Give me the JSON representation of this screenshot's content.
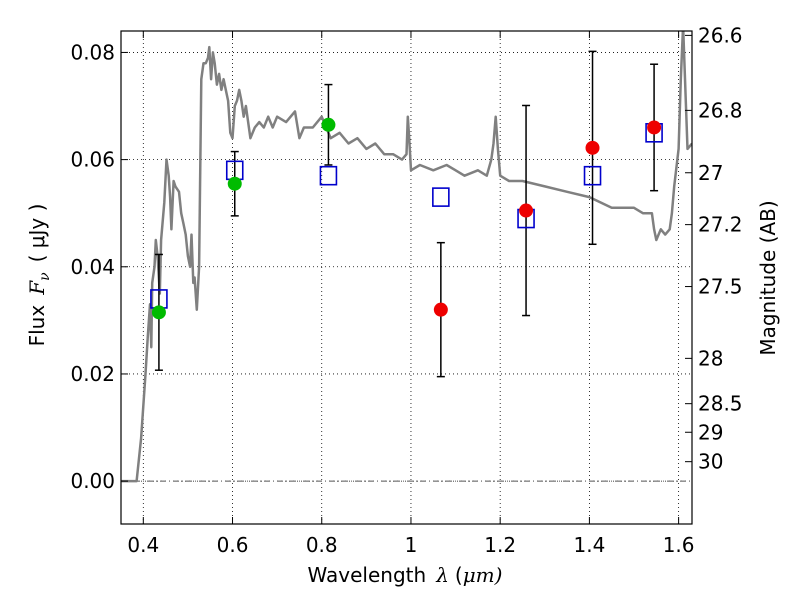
{
  "chart_data": {
    "type": "scatter",
    "xlabel": "Wavelength",
    "xlabel_symbol": "λ",
    "xlabel_unit_open": "(",
    "xlabel_unit": "μm)",
    "ylabel": "Flux",
    "ylabel_symbol": "F",
    "ylabel_subscript": "ν",
    "ylabel_unit": "( μJy )",
    "y2label": "Magnitude (AB)",
    "xlim": [
      0.35,
      1.63
    ],
    "ylim": [
      -0.008,
      0.084
    ],
    "grid": true,
    "x_ticks": [
      {
        "value": 0.4,
        "label": "0.4"
      },
      {
        "value": 0.6,
        "label": "0.6"
      },
      {
        "value": 0.8,
        "label": "0.8"
      },
      {
        "value": 1.0,
        "label": "1"
      },
      {
        "value": 1.2,
        "label": "1.2"
      },
      {
        "value": 1.4,
        "label": "1.4"
      },
      {
        "value": 1.6,
        "label": "1.6"
      }
    ],
    "y_ticks": [
      {
        "value": 0.0,
        "label": "0.00"
      },
      {
        "value": 0.02,
        "label": "0.02"
      },
      {
        "value": 0.04,
        "label": "0.04"
      },
      {
        "value": 0.06,
        "label": "0.06"
      },
      {
        "value": 0.08,
        "label": "0.08"
      }
    ],
    "y2_ticks": [
      {
        "value": 26.6,
        "label": "26.6"
      },
      {
        "value": 26.8,
        "label": "26.8"
      },
      {
        "value": 27.0,
        "label": "27"
      },
      {
        "value": 27.2,
        "label": "27.2"
      },
      {
        "value": 27.5,
        "label": "27.5"
      },
      {
        "value": 28.0,
        "label": "28"
      },
      {
        "value": 28.5,
        "label": "28.5"
      },
      {
        "value": 29.0,
        "label": "29"
      },
      {
        "value": 30.0,
        "label": "30"
      }
    ],
    "series": [
      {
        "name": "model spectrum",
        "kind": "line",
        "color": "#808080",
        "x": [
          0.35,
          0.375,
          0.385,
          0.395,
          0.405,
          0.41,
          0.415,
          0.418,
          0.42,
          0.425,
          0.428,
          0.432,
          0.437,
          0.44,
          0.447,
          0.452,
          0.457,
          0.46,
          0.463,
          0.468,
          0.472,
          0.48,
          0.485,
          0.49,
          0.495,
          0.5,
          0.505,
          0.508,
          0.512,
          0.515,
          0.52,
          0.525,
          0.53,
          0.535,
          0.54,
          0.545,
          0.548,
          0.552,
          0.556,
          0.56,
          0.565,
          0.57,
          0.575,
          0.58,
          0.585,
          0.59,
          0.595,
          0.6,
          0.605,
          0.61,
          0.615,
          0.62,
          0.625,
          0.63,
          0.64,
          0.65,
          0.66,
          0.67,
          0.68,
          0.69,
          0.7,
          0.72,
          0.74,
          0.75,
          0.76,
          0.78,
          0.8,
          0.82,
          0.84,
          0.86,
          0.88,
          0.9,
          0.92,
          0.94,
          0.96,
          0.98,
          0.99,
          0.993,
          0.996,
          1.0,
          1.02,
          1.05,
          1.08,
          1.1,
          1.12,
          1.15,
          1.17,
          1.18,
          1.185,
          1.19,
          1.195,
          1.2,
          1.22,
          1.25,
          1.3,
          1.35,
          1.4,
          1.45,
          1.47,
          1.5,
          1.52,
          1.54,
          1.545,
          1.55,
          1.56,
          1.57,
          1.58,
          1.585,
          1.59,
          1.6,
          1.605,
          1.61,
          1.62,
          1.63
        ],
        "y": [
          0.0,
          0.0,
          0.0,
          0.008,
          0.02,
          0.027,
          0.033,
          0.025,
          0.037,
          0.04,
          0.045,
          0.042,
          0.035,
          0.045,
          0.052,
          0.06,
          0.057,
          0.053,
          0.047,
          0.056,
          0.055,
          0.054,
          0.05,
          0.048,
          0.046,
          0.042,
          0.04,
          0.046,
          0.037,
          0.038,
          0.032,
          0.04,
          0.075,
          0.078,
          0.078,
          0.079,
          0.081,
          0.075,
          0.08,
          0.078,
          0.074,
          0.076,
          0.073,
          0.075,
          0.073,
          0.071,
          0.065,
          0.064,
          0.07,
          0.071,
          0.073,
          0.071,
          0.068,
          0.07,
          0.064,
          0.066,
          0.067,
          0.066,
          0.068,
          0.066,
          0.068,
          0.067,
          0.069,
          0.064,
          0.066,
          0.066,
          0.068,
          0.064,
          0.065,
          0.063,
          0.064,
          0.062,
          0.063,
          0.061,
          0.061,
          0.06,
          0.061,
          0.068,
          0.064,
          0.058,
          0.059,
          0.058,
          0.059,
          0.058,
          0.057,
          0.058,
          0.057,
          0.06,
          0.063,
          0.068,
          0.062,
          0.057,
          0.056,
          0.056,
          0.055,
          0.054,
          0.053,
          0.051,
          0.051,
          0.051,
          0.05,
          0.05,
          0.047,
          0.045,
          0.047,
          0.046,
          0.047,
          0.05,
          0.055,
          0.062,
          0.075,
          0.085,
          0.062,
          0.063
        ]
      },
      {
        "name": "model photometry",
        "kind": "open-square",
        "color": "#0000cc",
        "x": [
          0.435,
          0.605,
          0.815,
          1.067,
          1.258,
          1.407,
          1.545
        ],
        "y": [
          0.034,
          0.058,
          0.057,
          0.053,
          0.049,
          0.057,
          0.065
        ]
      },
      {
        "name": "optical detections",
        "kind": "filled-circle",
        "color": "#00bb00",
        "x": [
          0.435,
          0.605,
          0.815
        ],
        "y": [
          0.0315,
          0.0555,
          0.0665
        ],
        "err": [
          0.0108,
          0.006,
          0.0075
        ]
      },
      {
        "name": "NIR detections",
        "kind": "filled-circle",
        "color": "#ee0000",
        "x": [
          1.067,
          1.258,
          1.407,
          1.545
        ],
        "y": [
          0.032,
          0.0505,
          0.0622,
          0.066
        ],
        "err": [
          0.0125,
          0.0196,
          0.018,
          0.0118
        ]
      }
    ]
  }
}
